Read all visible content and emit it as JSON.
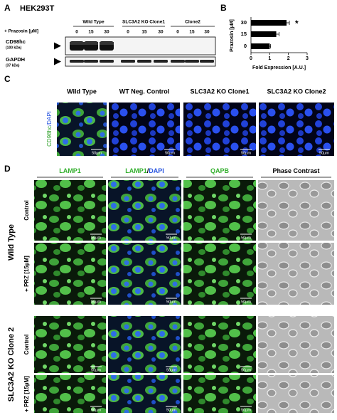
{
  "panel_a": {
    "label": "A",
    "cell_line": "HEK293T",
    "groups": [
      "Wild Type",
      "SLC3A2 KO Clone1",
      "Clone2"
    ],
    "treatment_label": "+ Prazosin [µM]",
    "lanes": [
      "0",
      "15",
      "30",
      "0",
      "15",
      "30",
      "0",
      "15",
      "30"
    ],
    "blots": [
      {
        "name": "CD98hc",
        "size": "(100 kDa)"
      },
      {
        "name": "GAPDH",
        "size": "(37 kDa)"
      }
    ]
  },
  "chart_data": {
    "type": "bar",
    "orientation": "horizontal",
    "panel_label": "B",
    "categories": [
      "30",
      "15",
      "0"
    ],
    "values": [
      1.9,
      1.35,
      1.0
    ],
    "errors": [
      0.15,
      0.15,
      0.05
    ],
    "color": "#000000",
    "xlim": [
      0,
      3
    ],
    "xticks": [
      0,
      1,
      2,
      3
    ],
    "ylabel": "Prazosin [µM]",
    "xlabel": "Fold Expression [A.U.]",
    "annotation": "*"
  },
  "panel_c": {
    "label": "C",
    "columns": [
      "Wild Type",
      "WT Neg. Control",
      "SLC3A2 KO Clone1",
      "SLC3A2 KO Clone2"
    ],
    "stain": [
      "CD98hc",
      "/DAPI"
    ],
    "scale_bar": "50µm"
  },
  "panel_d": {
    "label": "D",
    "columns": [
      [
        "LAMP1"
      ],
      [
        "LAMP1",
        "/",
        "DAPI"
      ],
      [
        "QAPB"
      ],
      [
        "Phase Contrast"
      ]
    ],
    "groups": [
      {
        "name": "Wild Type",
        "rows": [
          "Control",
          "+ PRZ [15µM]"
        ]
      },
      {
        "name": "SLC3A2 KO Clone 2",
        "rows": [
          "Control",
          "+ PRZ [15µM]"
        ]
      }
    ],
    "scale_bar": "50µm"
  }
}
